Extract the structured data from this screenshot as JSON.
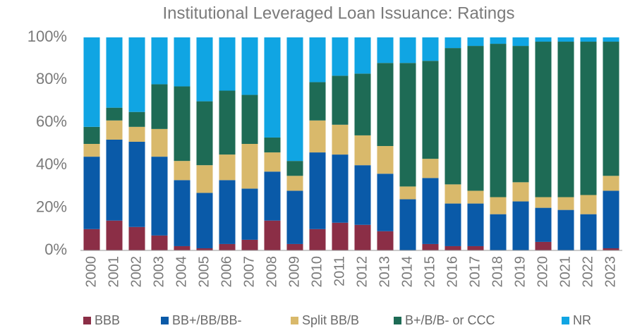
{
  "chart_data": {
    "type": "stacked_bar",
    "title": "Institutional Leveraged Loan Issuance: Ratings",
    "categories": [
      "2000",
      "2001",
      "2002",
      "2003",
      "2004",
      "2005",
      "2006",
      "2007",
      "2008",
      "2009",
      "2010",
      "2011",
      "2012",
      "2013",
      "2014",
      "2015",
      "2016",
      "2017",
      "2018",
      "2019",
      "2020",
      "2021",
      "2022",
      "2023"
    ],
    "series": [
      {
        "name": "BBB",
        "color": "#8b2e46",
        "values": [
          10,
          14,
          11,
          7,
          2,
          1,
          3,
          5,
          14,
          3,
          10,
          13,
          12,
          9,
          0,
          3,
          2,
          2,
          0,
          0,
          4,
          0,
          0,
          1
        ]
      },
      {
        "name": "BB+/BB/BB-",
        "color": "#0a5aa8",
        "values": [
          34,
          38,
          40,
          37,
          31,
          26,
          30,
          24,
          23,
          25,
          36,
          32,
          28,
          27,
          24,
          31,
          20,
          20,
          17,
          23,
          16,
          19,
          17,
          27
        ]
      },
      {
        "name": "Split BB/B",
        "color": "#d9b96b",
        "values": [
          6,
          9,
          7,
          13,
          9,
          13,
          12,
          21,
          9,
          7,
          15,
          14,
          14,
          13,
          6,
          9,
          9,
          6,
          8,
          9,
          5,
          6,
          9,
          7
        ]
      },
      {
        "name": "B+/B/B- or CCC",
        "color": "#1e6b55",
        "values": [
          8,
          6,
          7,
          21,
          35,
          30,
          30,
          23,
          7,
          7,
          18,
          23,
          29,
          39,
          58,
          46,
          64,
          68,
          72,
          64,
          73,
          73,
          72,
          63
        ]
      },
      {
        "name": "NR",
        "color": "#10a5e3",
        "values": [
          42,
          33,
          35,
          22,
          23,
          30,
          25,
          27,
          47,
          58,
          21,
          18,
          17,
          12,
          12,
          11,
          5,
          4,
          3,
          4,
          2,
          2,
          2,
          2
        ]
      }
    ],
    "ylim": [
      0,
      100
    ],
    "yticks": [
      {
        "value": 0,
        "label": "0%"
      },
      {
        "value": 20,
        "label": "20%"
      },
      {
        "value": 40,
        "label": "40%"
      },
      {
        "value": 60,
        "label": "60%"
      },
      {
        "value": 80,
        "label": "80%"
      },
      {
        "value": 100,
        "label": "100%"
      }
    ]
  }
}
